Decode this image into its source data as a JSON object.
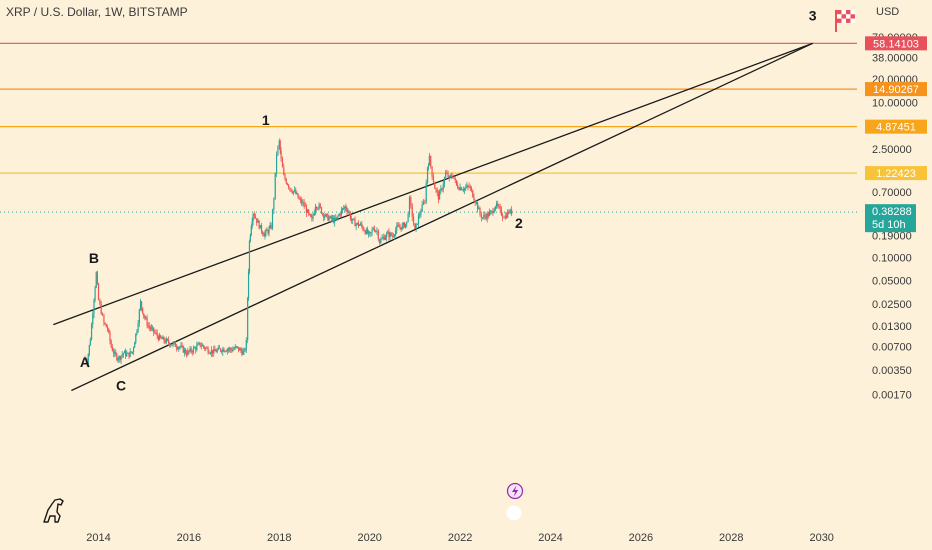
{
  "header": {
    "title": "XRP / U.S. Dollar, 1W, BITSTAMP",
    "currency": "USD"
  },
  "chart_data": {
    "type": "candlestick",
    "scale": "log",
    "y_ticks": [
      "70.00000",
      "38.00000",
      "20.00000",
      "10.00000",
      "2.50000",
      "0.70000",
      "0.19000",
      "0.10000",
      "0.05000",
      "0.02500",
      "0.01300",
      "0.00700",
      "0.00350",
      "0.00170"
    ],
    "x_ticks": [
      "2014",
      "2016",
      "2018",
      "2020",
      "2022",
      "2024",
      "2026",
      "2028",
      "2030"
    ],
    "horizontal_levels": [
      {
        "label": "58.14103",
        "value": 58.14103,
        "color": "#e8505b"
      },
      {
        "label": "14.90267",
        "value": 14.90267,
        "color": "#f7931a"
      },
      {
        "label": "4.87451",
        "value": 4.87451,
        "color": "#f7a51a"
      },
      {
        "label": "1.22423",
        "value": 1.22423,
        "color": "#f9c338"
      }
    ],
    "current_price": {
      "label": "0.38288",
      "countdown": "5d 10h",
      "value": 0.38288,
      "color": "#26a69a"
    },
    "wave_labels": [
      {
        "text": "A",
        "x": 2013.7,
        "y": 0.0038
      },
      {
        "text": "B",
        "x": 2013.9,
        "y": 0.084
      },
      {
        "text": "C",
        "x": 2014.5,
        "y": 0.0019
      },
      {
        "text": "1",
        "x": 2017.7,
        "y": 5.1
      },
      {
        "text": "2",
        "x": 2023.3,
        "y": 0.24
      },
      {
        "text": "3",
        "x": 2029.8,
        "y": 115
      }
    ],
    "trend_lines": [
      {
        "name": "upper",
        "from": {
          "x": 2013.0,
          "y": 0.0135
        },
        "to": {
          "x": 2029.8,
          "y": 58.14
        }
      },
      {
        "name": "lower",
        "from": {
          "x": 2013.4,
          "y": 0.0019
        },
        "to": {
          "x": 2029.8,
          "y": 58.14
        }
      }
    ],
    "price_path": [
      [
        2013.68,
        0.005
      ],
      [
        2013.75,
        0.0045
      ],
      [
        2013.82,
        0.009
      ],
      [
        2013.9,
        0.03
      ],
      [
        2013.95,
        0.062
      ],
      [
        2014.0,
        0.028
      ],
      [
        2014.06,
        0.02
      ],
      [
        2014.12,
        0.014
      ],
      [
        2014.2,
        0.012
      ],
      [
        2014.28,
        0.007
      ],
      [
        2014.36,
        0.0055
      ],
      [
        2014.45,
        0.005
      ],
      [
        2014.55,
        0.0058
      ],
      [
        2014.65,
        0.0055
      ],
      [
        2014.75,
        0.006
      ],
      [
        2014.85,
        0.012
      ],
      [
        2014.93,
        0.026
      ],
      [
        2015.0,
        0.018
      ],
      [
        2015.1,
        0.013
      ],
      [
        2015.22,
        0.011
      ],
      [
        2015.35,
        0.009
      ],
      [
        2015.5,
        0.0082
      ],
      [
        2015.65,
        0.0075
      ],
      [
        2015.8,
        0.007
      ],
      [
        2015.95,
        0.0058
      ],
      [
        2016.1,
        0.0065
      ],
      [
        2016.25,
        0.0075
      ],
      [
        2016.4,
        0.0065
      ],
      [
        2016.55,
        0.006
      ],
      [
        2016.7,
        0.0065
      ],
      [
        2016.85,
        0.0066
      ],
      [
        2016.95,
        0.0064
      ],
      [
        2017.05,
        0.0068
      ],
      [
        2017.15,
        0.0062
      ],
      [
        2017.22,
        0.0058
      ],
      [
        2017.27,
        0.008
      ],
      [
        2017.3,
        0.03
      ],
      [
        2017.34,
        0.16
      ],
      [
        2017.38,
        0.27
      ],
      [
        2017.42,
        0.38
      ],
      [
        2017.5,
        0.3
      ],
      [
        2017.58,
        0.24
      ],
      [
        2017.66,
        0.2
      ],
      [
        2017.75,
        0.22
      ],
      [
        2017.82,
        0.25
      ],
      [
        2017.88,
        0.6
      ],
      [
        2017.94,
        2.2
      ],
      [
        2018.0,
        3.1
      ],
      [
        2018.04,
        1.8
      ],
      [
        2018.1,
        1.1
      ],
      [
        2018.18,
        0.9
      ],
      [
        2018.26,
        0.75
      ],
      [
        2018.34,
        0.7
      ],
      [
        2018.44,
        0.55
      ],
      [
        2018.55,
        0.47
      ],
      [
        2018.65,
        0.35
      ],
      [
        2018.72,
        0.3
      ],
      [
        2018.8,
        0.48
      ],
      [
        2018.88,
        0.45
      ],
      [
        2018.96,
        0.37
      ],
      [
        2019.05,
        0.33
      ],
      [
        2019.15,
        0.31
      ],
      [
        2019.25,
        0.3
      ],
      [
        2019.35,
        0.38
      ],
      [
        2019.45,
        0.45
      ],
      [
        2019.52,
        0.4
      ],
      [
        2019.6,
        0.3
      ],
      [
        2019.7,
        0.27
      ],
      [
        2019.8,
        0.26
      ],
      [
        2019.9,
        0.22
      ],
      [
        2020.0,
        0.19
      ],
      [
        2020.08,
        0.24
      ],
      [
        2020.16,
        0.22
      ],
      [
        2020.22,
        0.16
      ],
      [
        2020.3,
        0.18
      ],
      [
        2020.4,
        0.2
      ],
      [
        2020.5,
        0.19
      ],
      [
        2020.6,
        0.24
      ],
      [
        2020.72,
        0.25
      ],
      [
        2020.82,
        0.28
      ],
      [
        2020.88,
        0.55
      ],
      [
        2020.94,
        0.35
      ],
      [
        2021.0,
        0.22
      ],
      [
        2021.08,
        0.33
      ],
      [
        2021.16,
        0.45
      ],
      [
        2021.22,
        0.55
      ],
      [
        2021.28,
        1.5
      ],
      [
        2021.32,
        1.9
      ],
      [
        2021.38,
        1.2
      ],
      [
        2021.44,
        0.8
      ],
      [
        2021.52,
        0.6
      ],
      [
        2021.6,
        0.8
      ],
      [
        2021.68,
        1.2
      ],
      [
        2021.76,
        1.05
      ],
      [
        2021.84,
        1.15
      ],
      [
        2021.92,
        0.85
      ],
      [
        2022.0,
        0.8
      ],
      [
        2022.1,
        0.78
      ],
      [
        2022.2,
        0.82
      ],
      [
        2022.28,
        0.65
      ],
      [
        2022.36,
        0.5
      ],
      [
        2022.44,
        0.36
      ],
      [
        2022.5,
        0.33
      ],
      [
        2022.6,
        0.35
      ],
      [
        2022.7,
        0.38
      ],
      [
        2022.78,
        0.48
      ],
      [
        2022.86,
        0.42
      ],
      [
        2022.94,
        0.35
      ],
      [
        2023.0,
        0.34
      ],
      [
        2023.08,
        0.39
      ],
      [
        2023.14,
        0.38288
      ]
    ]
  }
}
